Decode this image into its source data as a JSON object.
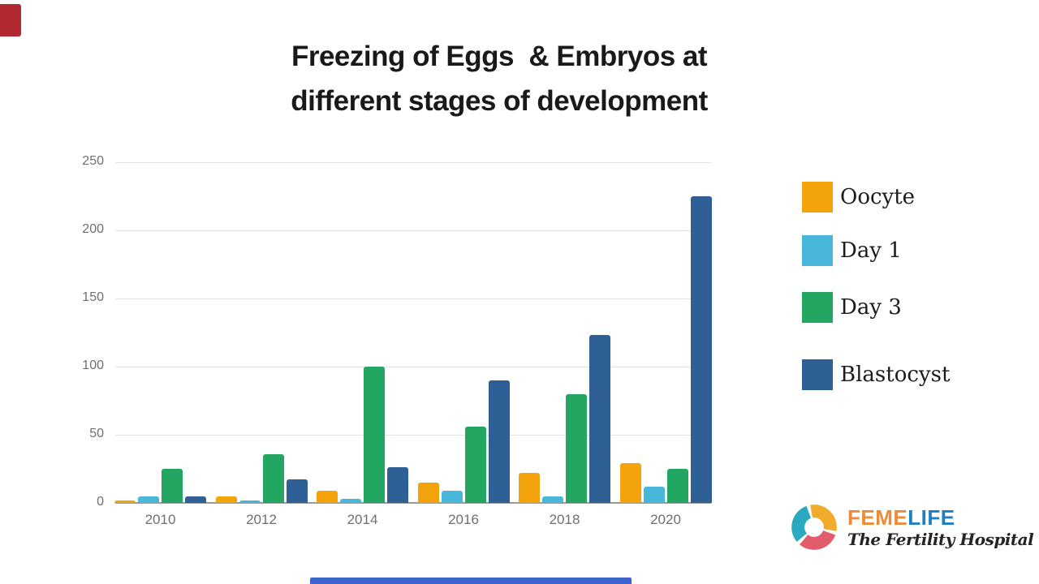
{
  "slide": {
    "title_line1": "Freezing of Eggs  & Embryos at",
    "title_line2": "different stages of development"
  },
  "chart_data": {
    "type": "bar",
    "title": "Freezing of Eggs  & Embryos at different stages of development",
    "categories": [
      "2010",
      "2012",
      "2014",
      "2016",
      "2018",
      "2020"
    ],
    "series": [
      {
        "name": "Oocyte",
        "color": "#F3A40D",
        "values": [
          2,
          5,
          9,
          15,
          22,
          29
        ]
      },
      {
        "name": "Day 1",
        "color": "#49B7D9",
        "values": [
          5,
          2,
          3,
          9,
          5,
          12
        ]
      },
      {
        "name": "Day 3",
        "color": "#23A661",
        "values": [
          25,
          36,
          100,
          56,
          80,
          25
        ]
      },
      {
        "name": "Blastocyst",
        "color": "#2E5F95",
        "values": [
          5,
          17,
          26,
          90,
          123,
          225
        ]
      }
    ],
    "xlabel": "",
    "ylabel": "",
    "ylim": [
      0,
      250
    ],
    "yticks": [
      0,
      50,
      100,
      150,
      200,
      250
    ],
    "grid": true,
    "legend_position": "right"
  },
  "branding": {
    "name_part1": "FEME",
    "name_part2": "LIFE",
    "name_color1": "#EC8B38",
    "name_color2": "#1E7EC3",
    "tagline": "The Fertility Hospital",
    "logo_colors": {
      "teal": "#2BA9BE",
      "yellow": "#F2AC2B",
      "pink": "#E25C6C"
    }
  },
  "decorations": {
    "corner_color": "#B12A31",
    "bottom_bar_color": "#3E63CE"
  }
}
